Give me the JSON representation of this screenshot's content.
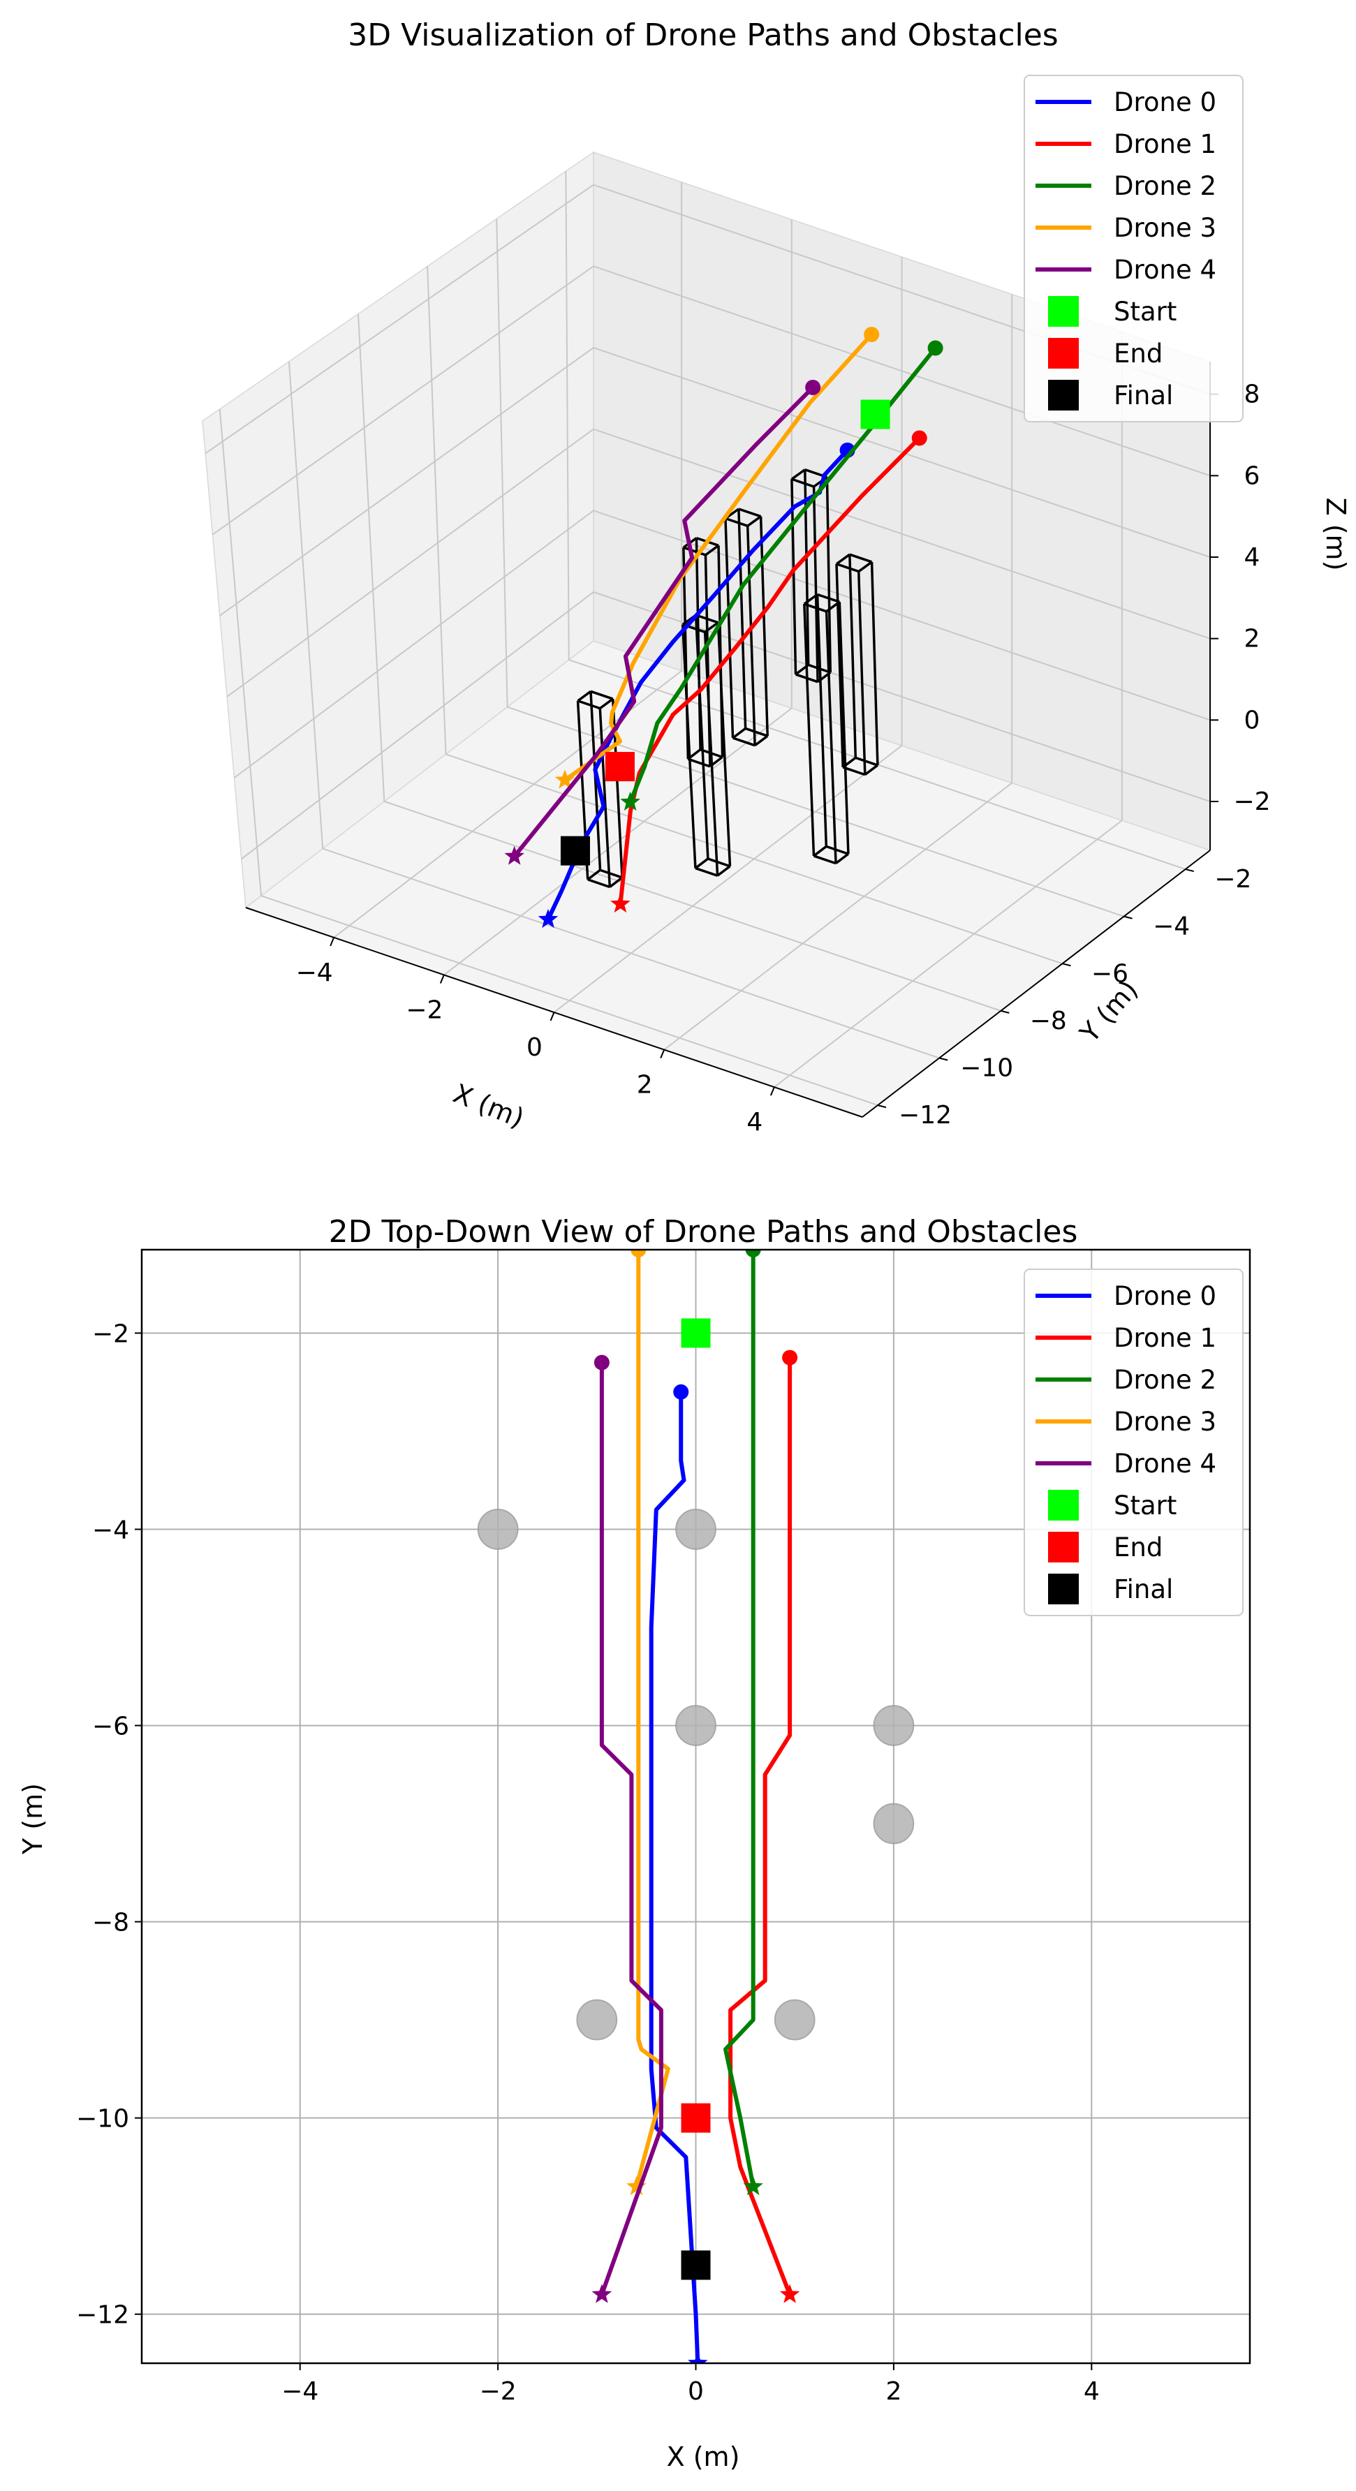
{
  "figure": {
    "background": "#ffffff"
  },
  "chart_data": [
    {
      "type": "line",
      "view": "3d",
      "title": "3D Visualization of Drone Paths and Obstacles",
      "xlabel": "X (m)",
      "ylabel": "Y (m)",
      "zlabel": "Z (m)",
      "x_ticks": [
        -4,
        -2,
        0,
        2,
        4
      ],
      "y_ticks": [
        -2,
        -4,
        -6,
        -8,
        -10,
        -12
      ],
      "z_ticks": [
        8,
        6,
        4,
        2,
        0,
        -2
      ],
      "xlim": [
        -5.6,
        5.6
      ],
      "ylim": [
        -12.5,
        -1.2
      ],
      "zlim": [
        -3.2,
        8.8
      ],
      "grid": true,
      "legend_position": "top-right",
      "legend": [
        "Drone 0",
        "Drone 1",
        "Drone 2",
        "Drone 3",
        "Drone 4",
        "Start",
        "End",
        "Final"
      ]
    },
    {
      "type": "line",
      "view": "2d-top-down",
      "title": "2D Top-Down View of Drone Paths and Obstacles",
      "xlabel": "X (m)",
      "ylabel": "Y (m)",
      "xlim": [
        -5.6,
        5.6
      ],
      "ylim": [
        -12.5,
        -1.15
      ],
      "x_ticks": [
        -4,
        -2,
        0,
        2,
        4
      ],
      "y_ticks": [
        -2,
        -4,
        -6,
        -8,
        -10,
        -12
      ],
      "grid": true,
      "legend_position": "top-right",
      "legend": [
        "Drone 0",
        "Drone 1",
        "Drone 2",
        "Drone 3",
        "Drone 4",
        "Start",
        "End",
        "Final"
      ]
    }
  ],
  "series": [
    {
      "name": "Drone 0",
      "color": "#0000ff",
      "x": [
        -0.15,
        -0.15,
        -0.12,
        -0.4,
        -0.45,
        -0.45,
        -0.45,
        -0.45,
        -0.45,
        -0.45,
        -0.4,
        -0.1,
        -0.05,
        0.0,
        0.02
      ],
      "y": [
        -2.6,
        -3.3,
        -3.5,
        -3.8,
        -5.0,
        -6.2,
        -7.5,
        -8.5,
        -9.0,
        -9.5,
        -10.1,
        -10.4,
        -11.2,
        -12.0,
        -12.5
      ],
      "z": [
        4.8,
        4.6,
        4.3,
        4.0,
        3.6,
        3.2,
        2.8,
        2.4,
        2.0,
        1.6,
        1.2,
        0.6,
        0.2,
        -0.5,
        -0.9
      ]
    },
    {
      "name": "Drone 1",
      "color": "#ff0000",
      "x": [
        0.95,
        0.95,
        0.95,
        0.7,
        0.7,
        0.7,
        0.35,
        0.35,
        0.45,
        0.95
      ],
      "y": [
        -2.25,
        -4.0,
        -6.1,
        -6.5,
        -7.5,
        -8.6,
        -8.9,
        -10.0,
        -10.5,
        -11.8
      ],
      "z": [
        5.4,
        5.0,
        4.4,
        3.6,
        3.2,
        2.8,
        2.2,
        1.4,
        0.8,
        -0.5
      ]
    },
    {
      "name": "Drone 2",
      "color": "#008000",
      "x": [
        0.58,
        0.58,
        0.58,
        0.58,
        0.58,
        0.3,
        0.45,
        0.58
      ],
      "y": [
        -1.15,
        -3.0,
        -5.0,
        -7.0,
        -9.0,
        -9.3,
        -10.0,
        -10.7
      ],
      "z": [
        6.8,
        6.0,
        5.2,
        4.4,
        3.0,
        2.2,
        1.6,
        1.2
      ]
    },
    {
      "name": "Drone 3",
      "color": "#ffa500",
      "x": [
        -0.58,
        -0.58,
        -0.58,
        -0.58,
        -0.58,
        -0.58,
        -0.55,
        -0.28,
        -0.6
      ],
      "y": [
        -1.15,
        -3.0,
        -5.0,
        -7.0,
        -8.5,
        -9.2,
        -9.3,
        -9.5,
        -10.7
      ],
      "z": [
        6.6,
        6.0,
        5.0,
        4.0,
        2.8,
        2.0,
        1.8,
        1.6,
        1.2
      ]
    },
    {
      "name": "Drone 4",
      "color": "#800080",
      "x": [
        -0.95,
        -0.95,
        -0.95,
        -0.65,
        -0.65,
        -0.35,
        -0.35,
        -0.95
      ],
      "y": [
        -2.3,
        -4.0,
        -6.2,
        -6.5,
        -8.6,
        -8.9,
        -10.1,
        -11.8
      ],
      "z": [
        5.8,
        5.4,
        4.8,
        4.2,
        3.0,
        2.2,
        1.6,
        -0.2
      ]
    }
  ],
  "markers": {
    "start": {
      "label": "Start",
      "color": "#00ff00",
      "x": 0.0,
      "y": -2.0,
      "z": 5.4
    },
    "end": {
      "label": "End",
      "color": "#ff0000",
      "x": 0.0,
      "y": -10.0,
      "z": 1.4
    },
    "final": {
      "label": "Final",
      "color": "#000000",
      "x": 0.0,
      "y": -11.5,
      "z": 0.2
    }
  },
  "obstacles": [
    {
      "x": -2.0,
      "y": -4.0,
      "z0": -2.8,
      "z1": 2.4
    },
    {
      "x": 0.0,
      "y": -4.0,
      "z0": 0.2,
      "z1": 5.0
    },
    {
      "x": 0.0,
      "y": -6.0,
      "z0": -0.2,
      "z1": 5.2
    },
    {
      "x": 2.0,
      "y": -6.0,
      "z0": 0.0,
      "z1": 5.0
    },
    {
      "x": 2.0,
      "y": -7.0,
      "z0": -1.6,
      "z1": 4.6
    },
    {
      "x": -1.0,
      "y": -9.0,
      "z0": -2.4,
      "z1": 2.0
    },
    {
      "x": 1.0,
      "y": -9.0,
      "z0": -1.2,
      "z1": 4.8
    }
  ],
  "obstacle_style": {
    "fill": "#b3b3b3",
    "edge": "#000000",
    "radius_m": 0.2
  }
}
